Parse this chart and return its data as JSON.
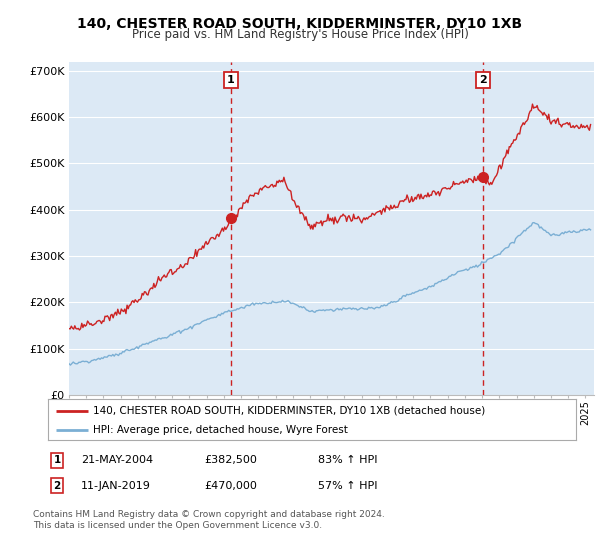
{
  "title": "140, CHESTER ROAD SOUTH, KIDDERMINSTER, DY10 1XB",
  "subtitle": "Price paid vs. HM Land Registry's House Price Index (HPI)",
  "title_fontsize": 10,
  "subtitle_fontsize": 8.5,
  "background_color": "#ffffff",
  "plot_bg_color": "#dce9f5",
  "grid_color": "#ffffff",
  "hpi_color": "#7bafd4",
  "price_color": "#cc2222",
  "annotation_color": "#cc2222",
  "ylim": [
    0,
    720000
  ],
  "yticks": [
    0,
    100000,
    200000,
    300000,
    400000,
    500000,
    600000,
    700000
  ],
  "ytick_labels": [
    "£0",
    "£100K",
    "£200K",
    "£300K",
    "£400K",
    "£500K",
    "£600K",
    "£700K"
  ],
  "marker1_x": 2004.39,
  "marker1_y": 382500,
  "marker1_label": "1",
  "marker2_x": 2019.03,
  "marker2_y": 470000,
  "marker2_label": "2",
  "vline1_x": 2004.39,
  "vline2_x": 2019.03,
  "legend_line1": "140, CHESTER ROAD SOUTH, KIDDERMINSTER, DY10 1XB (detached house)",
  "legend_line2": "HPI: Average price, detached house, Wyre Forest",
  "table_row1": [
    "1",
    "21-MAY-2004",
    "£382,500",
    "83% ↑ HPI"
  ],
  "table_row2": [
    "2",
    "11-JAN-2019",
    "£470,000",
    "57% ↑ HPI"
  ],
  "footnote": "Contains HM Land Registry data © Crown copyright and database right 2024.\nThis data is licensed under the Open Government Licence v3.0.",
  "xmin": 1995.0,
  "xmax": 2025.5
}
